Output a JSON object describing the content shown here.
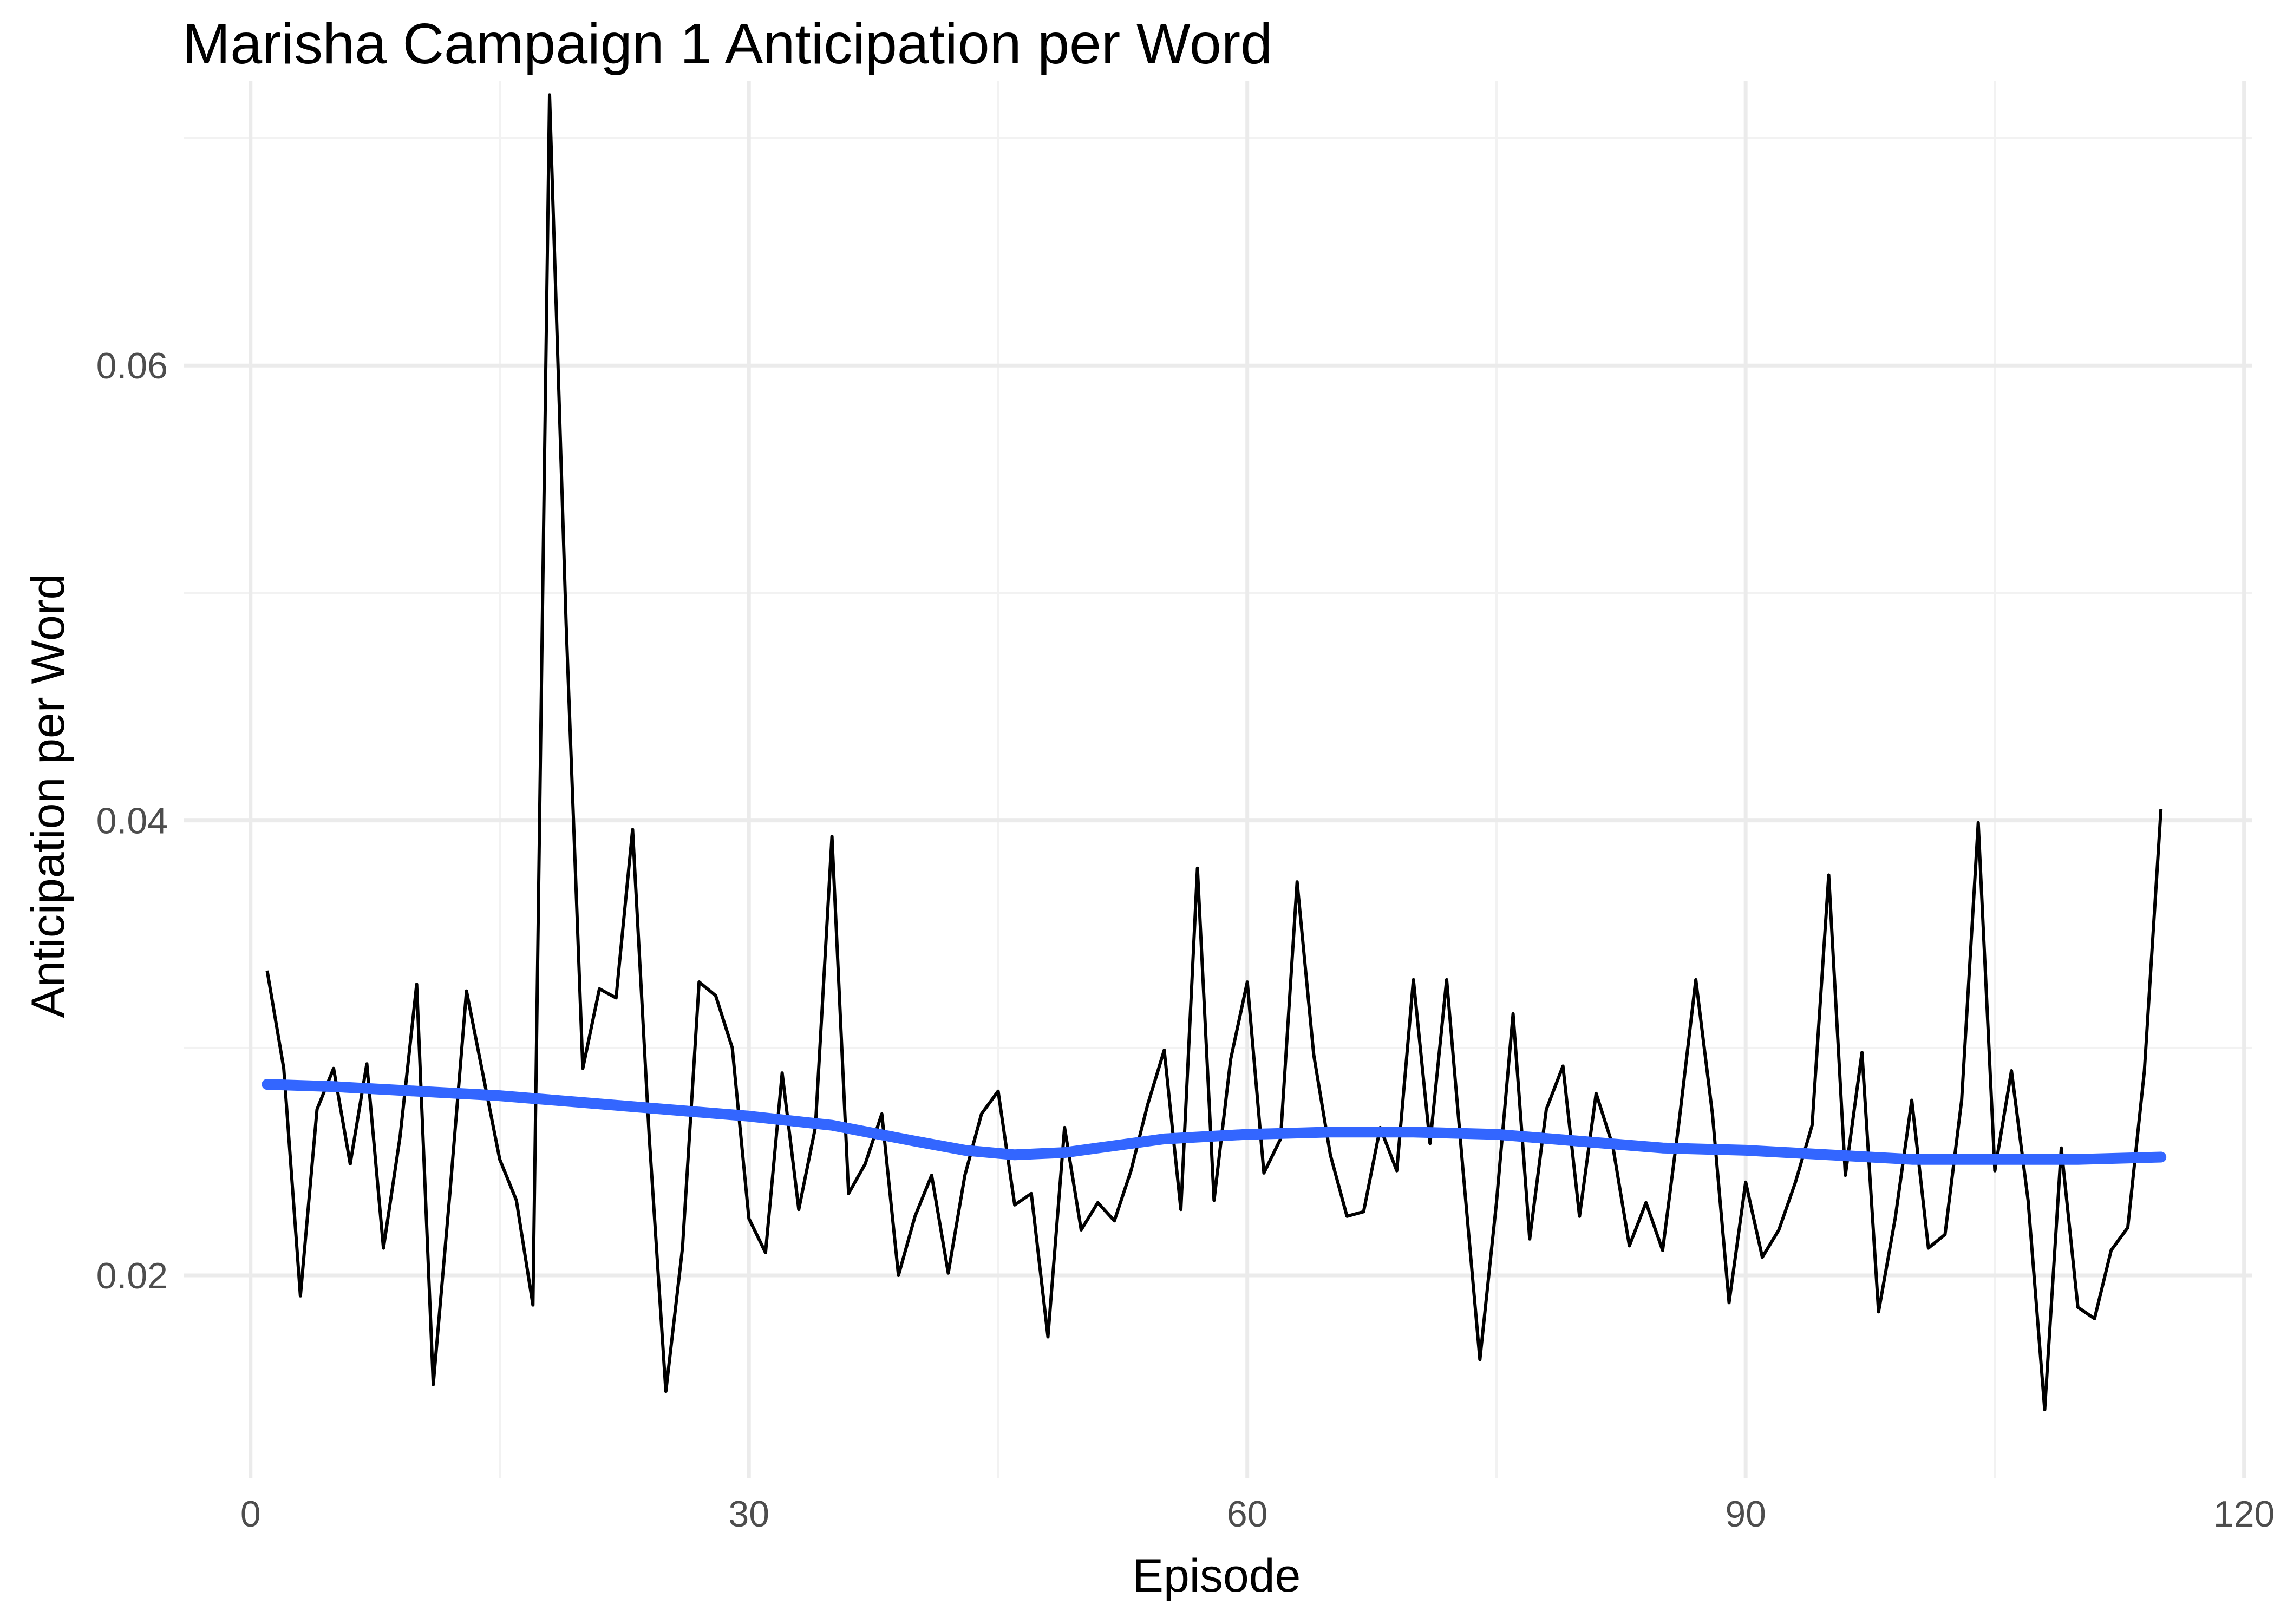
{
  "chart_data": {
    "type": "line",
    "title": "Marisha Campaign 1 Anticipation per Word",
    "xlabel": "Episode",
    "ylabel": "Anticipation per Word",
    "xlim": [
      -4,
      120.5
    ],
    "ylim": [
      0.0111,
      0.0725
    ],
    "x_ticks": [
      0,
      30,
      60,
      90,
      120
    ],
    "x_tick_labels": [
      "0",
      "30",
      "60",
      "90",
      "120"
    ],
    "y_ticks": [
      0.02,
      0.04,
      0.06
    ],
    "y_tick_labels": [
      "0.02",
      "0.04",
      "0.06"
    ],
    "grid": true,
    "legend": "none",
    "series": [
      {
        "role": "data",
        "color": "#000000",
        "x": [
          1,
          2,
          3,
          4,
          5,
          6,
          7,
          8,
          9,
          10,
          11,
          12,
          13,
          14,
          15,
          16,
          17,
          18,
          19,
          20,
          21,
          22,
          23,
          24,
          25,
          26,
          27,
          28,
          29,
          30,
          31,
          32,
          33,
          34,
          35,
          36,
          37,
          38,
          39,
          40,
          41,
          42,
          43,
          44,
          45,
          46,
          47,
          48,
          49,
          50,
          51,
          52,
          53,
          54,
          55,
          56,
          57,
          58,
          59,
          60,
          61,
          62,
          63,
          64,
          65,
          66,
          67,
          68,
          69,
          70,
          71,
          72,
          73,
          74,
          75,
          76,
          77,
          78,
          79,
          80,
          81,
          82,
          83,
          84,
          85,
          86,
          87,
          88,
          89,
          90,
          91,
          92,
          93,
          94,
          95,
          96,
          97,
          98,
          99,
          100,
          101,
          102,
          103,
          104,
          105,
          106,
          107,
          108,
          109,
          110,
          111,
          112,
          113,
          114,
          115
        ],
        "values": [
          0.0334,
          0.0291,
          0.0191,
          0.0273,
          0.0291,
          0.0249,
          0.0293,
          0.0212,
          0.0261,
          0.0328,
          0.0152,
          0.0236,
          0.0325,
          0.0288,
          0.0251,
          0.0233,
          0.0187,
          0.0719,
          0.0486,
          0.0291,
          0.0326,
          0.0322,
          0.0396,
          0.0261,
          0.0149,
          0.0212,
          0.0329,
          0.0323,
          0.03,
          0.0225,
          0.021,
          0.0289,
          0.0229,
          0.0265,
          0.0393,
          0.0236,
          0.0249,
          0.0271,
          0.02,
          0.0226,
          0.0244,
          0.0201,
          0.0244,
          0.0271,
          0.0281,
          0.0231,
          0.0236,
          0.0173,
          0.0265,
          0.022,
          0.0232,
          0.0224,
          0.0246,
          0.0275,
          0.0299,
          0.0229,
          0.0379,
          0.0233,
          0.0295,
          0.0329,
          0.0245,
          0.026,
          0.0373,
          0.0297,
          0.0253,
          0.0226,
          0.0228,
          0.0265,
          0.0246,
          0.033,
          0.0258,
          0.033,
          0.0245,
          0.0163,
          0.0232,
          0.0315,
          0.0216,
          0.0273,
          0.0292,
          0.0226,
          0.028,
          0.0257,
          0.0213,
          0.0232,
          0.0211,
          0.0268,
          0.033,
          0.0271,
          0.0188,
          0.0241,
          0.0208,
          0.022,
          0.0241,
          0.0266,
          0.0376,
          0.0244,
          0.0298,
          0.0184,
          0.0225,
          0.0277,
          0.0212,
          0.0218,
          0.0277,
          0.0399,
          0.0246,
          0.029,
          0.0233,
          0.0141,
          0.0256,
          0.0186,
          0.0181,
          0.0211,
          0.0221,
          0.029,
          0.0405
        ]
      },
      {
        "role": "smoothed-trend",
        "color": "#3366ff",
        "x": [
          1,
          5,
          10,
          15,
          20,
          25,
          30,
          35,
          40,
          43,
          46,
          49,
          52,
          55,
          60,
          65,
          70,
          75,
          80,
          85,
          90,
          95,
          100,
          105,
          110,
          115
        ],
        "values": [
          0.0284,
          0.0283,
          0.0281,
          0.0279,
          0.0276,
          0.0273,
          0.027,
          0.0266,
          0.0259,
          0.0255,
          0.0253,
          0.0254,
          0.0257,
          0.026,
          0.0262,
          0.0263,
          0.0263,
          0.0262,
          0.0259,
          0.0256,
          0.0255,
          0.0253,
          0.0251,
          0.0251,
          0.0251,
          0.0252
        ]
      }
    ]
  }
}
